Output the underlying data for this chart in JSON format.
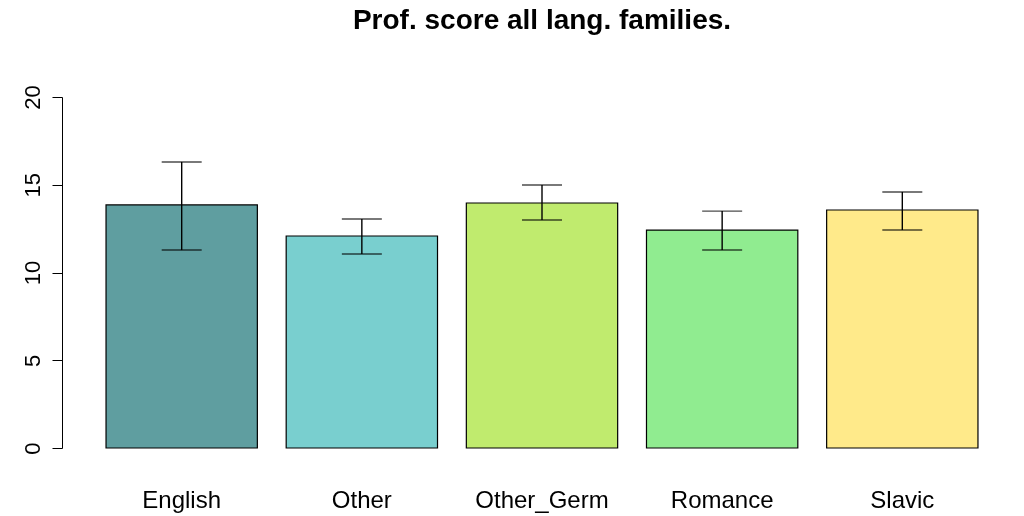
{
  "chart_data": {
    "type": "bar",
    "title": "Prof. score all lang. families.",
    "categories": [
      "English",
      "Other",
      "Other_Germ",
      "Romance",
      "Slavic"
    ],
    "values": [
      13.85,
      12.08,
      13.96,
      12.42,
      13.56
    ],
    "colors": [
      "#5f9ea0",
      "#79cfcf",
      "#c0eb6e",
      "#90ec90",
      "#ffea8a"
    ],
    "errors": [
      [
        11.28,
        16.3
      ],
      [
        11.05,
        13.05
      ],
      [
        12.99,
        14.99
      ],
      [
        11.28,
        13.5
      ],
      [
        12.42,
        14.59
      ]
    ],
    "ylim": [
      0,
      20
    ],
    "yticks": [
      0,
      5,
      10,
      15,
      20
    ]
  }
}
